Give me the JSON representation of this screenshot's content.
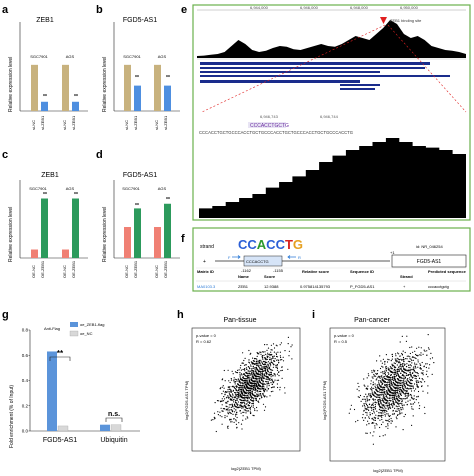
{
  "colors": {
    "tan": "#c8b27e",
    "blue": "#4e8fe0",
    "salmon": "#f08074",
    "green": "#2c9a5c",
    "frame_green": "#6ab04c",
    "flag_blue": "#5b94da",
    "nc_grey": "#d8d8d8",
    "marker_red": "#e02020",
    "motif_blue": "#2b7ad6"
  },
  "panels": {
    "a": {
      "label": "a",
      "title": "ZEB1",
      "ylabel": "Relative expression level",
      "groups": [
        "SGC7901",
        "AGS"
      ],
      "ticks": [
        "si-NC",
        "si-ZEB1",
        "si-NC",
        "si-ZEB1"
      ],
      "sig": [
        "**",
        "**"
      ],
      "chart_data": {
        "type": "bar",
        "categories": [
          "si-NC",
          "si-ZEB1",
          "si-NC",
          "si-ZEB1"
        ],
        "values": [
          1.0,
          0.2,
          1.0,
          0.2
        ],
        "ylim": [
          0,
          1.3
        ]
      }
    },
    "b": {
      "label": "b",
      "title": "FGD5-AS1",
      "ylabel": "Relative expression level",
      "groups": [
        "SGC7901",
        "AGS"
      ],
      "ticks": [
        "si-NC",
        "si-ZEB1",
        "si-NC",
        "si-ZEB1"
      ],
      "sig": [
        "**",
        "**"
      ],
      "chart_data": {
        "type": "bar",
        "categories": [
          "si-NC",
          "si-ZEB1",
          "si-NC",
          "si-ZEB1"
        ],
        "values": [
          1.0,
          0.55,
          1.0,
          0.55
        ],
        "ylim": [
          0,
          1.3
        ]
      }
    },
    "c": {
      "label": "c",
      "title": "ZEB1",
      "ylabel": "Relative expression level",
      "groups": [
        "SGC7901",
        "AGS"
      ],
      "ticks": [
        "OE-NC",
        "OE-ZEB1",
        "OE-NC",
        "OE-ZEB1"
      ],
      "sig": [
        "**",
        "**"
      ],
      "chart_data": {
        "type": "bar",
        "categories": [
          "OE-NC",
          "OE-ZEB1",
          "OE-NC",
          "OE-ZEB1"
        ],
        "values": [
          1.0,
          7.0,
          1.0,
          7.0
        ],
        "ylim": [
          0,
          8
        ]
      }
    },
    "d": {
      "label": "d",
      "title": "FGD5-AS1",
      "ylabel": "Relative expression level",
      "groups": [
        "SGC7901",
        "AGS"
      ],
      "ticks": [
        "OE-NC",
        "OE-ZEB1",
        "OE-NC",
        "OE-ZEB1"
      ],
      "sig": [
        "**",
        "**"
      ],
      "chart_data": {
        "type": "bar",
        "categories": [
          "OE-NC",
          "OE-ZEB1",
          "OE-NC",
          "OE-ZEB1"
        ],
        "values": [
          1.0,
          1.6,
          1.0,
          1.75
        ],
        "ylim": [
          0,
          2.0
        ]
      }
    },
    "e": {
      "label": "e",
      "binding_site": "ZEB1 binding site",
      "coords_top": [
        "6,944,000",
        "6,946,000",
        "6,948,000",
        "6,950,000"
      ],
      "coords_zoom": [
        "6,946,743",
        "6,946,744"
      ],
      "motif_seq": "CCCACCTGCTG",
      "dna_seq": "CCCACCTGCTGCCCACCTGCTGCCCACCTGCTGCCCACCTGCTGCCCACCTG",
      "peak_profile": [
        0.05,
        0.06,
        0.08,
        0.1,
        0.15,
        0.3,
        0.45,
        0.35,
        0.2,
        0.15,
        0.18,
        0.25,
        0.3,
        0.28,
        0.22,
        0.2,
        0.25,
        0.3,
        0.35,
        0.3,
        0.28,
        0.35,
        0.45,
        0.55,
        0.5,
        0.45,
        0.6,
        0.75,
        0.95,
        0.85,
        0.6,
        0.5,
        0.55,
        0.45,
        0.3,
        0.25,
        0.2,
        0.18,
        0.15,
        0.1
      ],
      "zoom_profile": [
        0.12,
        0.15,
        0.2,
        0.25,
        0.3,
        0.38,
        0.45,
        0.52,
        0.6,
        0.7,
        0.78,
        0.85,
        0.9,
        0.95,
        1.0,
        0.95,
        0.9,
        0.88,
        0.85,
        0.8
      ]
    },
    "f": {
      "label": "f",
      "strand_label": "strand",
      "strand_sign": "+",
      "motif_logo": "CCACCTG",
      "site_seq": "CCCACCTG",
      "primer_f": "F",
      "primer_r": "R",
      "pos_left": "-1162",
      "pos_right": "-1155",
      "plus_one": "+1",
      "gene_id": "id: NR_046254",
      "gene_name": "FGD5-AS1",
      "table_headers": [
        "Matrix ID",
        "Name",
        "Score",
        "Relative score",
        "Sequence ID",
        "Strand",
        "Predicted sequence"
      ],
      "table_row": [
        "MA0103.3",
        "ZEB1",
        "12.9388",
        "0.975814135793",
        "P_FGD5-AS1",
        "+",
        "cccacctgctg"
      ]
    },
    "g": {
      "label": "g",
      "ylabel": "Fold enrichment (% of Input)",
      "antibody": "Anti-Flag",
      "legend": [
        "oe_ZEB1-flag",
        "oe_NC"
      ],
      "categories": [
        "FGD5-AS1",
        "Ubiquitin"
      ],
      "sig": [
        "**",
        "n.s."
      ],
      "yticks": [
        "0.0",
        "0.2",
        "0.4",
        "0.6",
        "0.8"
      ],
      "chart_data": {
        "type": "bar",
        "categories": [
          "FGD5-AS1",
          "Ubiquitin"
        ],
        "series": [
          {
            "name": "oe_ZEB1-flag",
            "values": [
              0.63,
              0.05
            ]
          },
          {
            "name": "oe_NC",
            "values": [
              0.04,
              0.05
            ]
          }
        ],
        "ylim": [
          0,
          0.8
        ]
      }
    },
    "h": {
      "label": "h",
      "title": "Pan-tissue",
      "stats": [
        "p-value = 0",
        "R = 0.62"
      ],
      "xlabel": "log2(ZEB1 TPM)",
      "ylabel": "log2(FGD5-AS1 TPM)",
      "chart_data": {
        "type": "scatter",
        "correlation": 0.62,
        "p_value": 0
      }
    },
    "i": {
      "label": "i",
      "title": "Pan-cancer",
      "stats": [
        "p-value = 0",
        "R = 0.5"
      ],
      "xlabel": "log2(ZEB1 TPM)",
      "ylabel": "log2(FGD5-AS1 TPM)",
      "chart_data": {
        "type": "scatter",
        "correlation": 0.5,
        "p_value": 0
      }
    }
  }
}
